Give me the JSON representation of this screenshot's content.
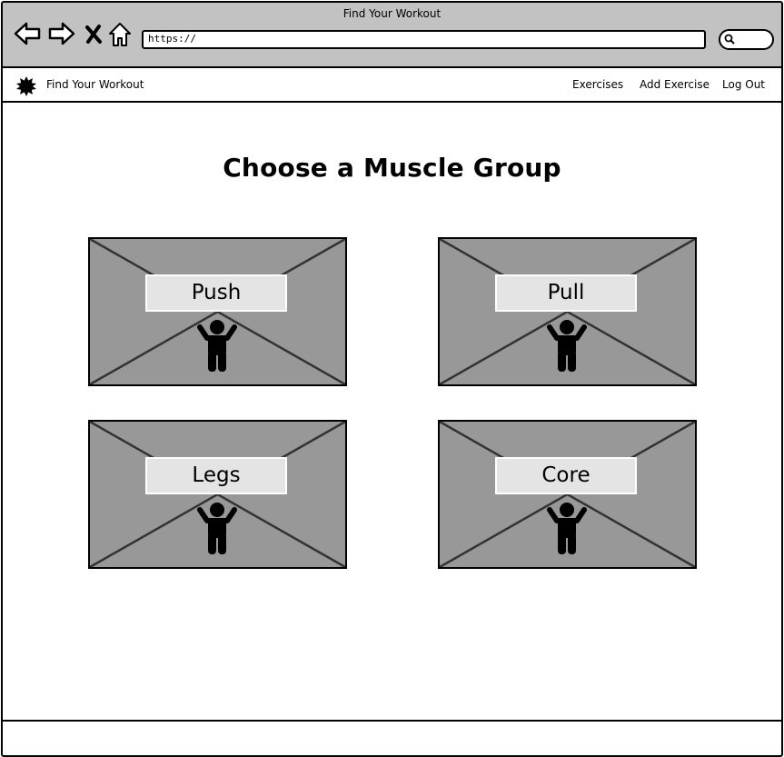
{
  "window": {
    "title": "Find Your Workout"
  },
  "browser": {
    "url": "https://"
  },
  "navbar": {
    "brand": "Find Your Workout",
    "links": [
      "Exercises",
      "Add Exercise",
      "Log Out"
    ]
  },
  "main": {
    "title": "Choose a Muscle Group",
    "groups": [
      "Push",
      "Pull",
      "Legs",
      "Core"
    ]
  },
  "icons": {
    "back": "arrow-left-icon",
    "forward": "arrow-right-icon",
    "stop": "close-icon",
    "home": "home-icon",
    "search": "search-icon",
    "logo": "gear-logo-icon",
    "card_figure": "person-arms-up-icon"
  },
  "colors": {
    "chrome": "#c2c2c2",
    "card_fill": "#989898",
    "label_fill": "#e4e4e4"
  }
}
